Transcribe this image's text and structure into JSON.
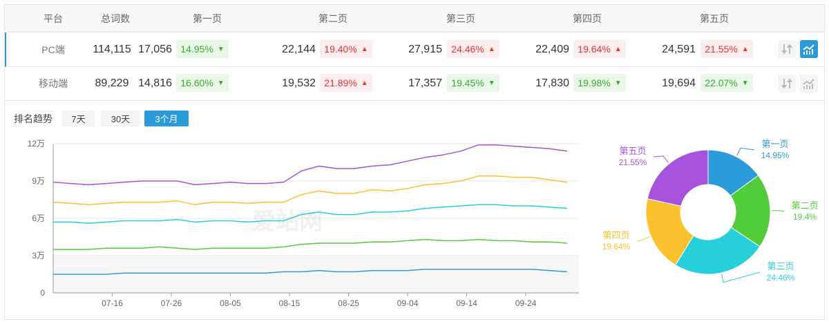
{
  "table": {
    "headers": [
      "平台",
      "总词数",
      "第一页",
      "第二页",
      "第三页",
      "第四页",
      "第五页"
    ],
    "rows": [
      {
        "platform": "PC端",
        "total": "114,115",
        "pages": [
          {
            "count": "17,056",
            "pct": "14.95%",
            "trend": "down"
          },
          {
            "count": "22,144",
            "pct": "19.40%",
            "trend": "up"
          },
          {
            "count": "27,915",
            "pct": "24.46%",
            "trend": "up"
          },
          {
            "count": "22,409",
            "pct": "19.64%",
            "trend": "up"
          },
          {
            "count": "24,591",
            "pct": "21.55%",
            "trend": "up"
          }
        ],
        "chart_active": true
      },
      {
        "platform": "移动端",
        "total": "89,229",
        "pages": [
          {
            "count": "14,816",
            "pct": "16.60%",
            "trend": "down"
          },
          {
            "count": "19,532",
            "pct": "21.89%",
            "trend": "up"
          },
          {
            "count": "17,357",
            "pct": "19.45%",
            "trend": "down"
          },
          {
            "count": "17,830",
            "pct": "19.98%",
            "trend": "down"
          },
          {
            "count": "19,694",
            "pct": "22.07%",
            "trend": "down"
          }
        ],
        "chart_active": false
      }
    ],
    "icons": [
      "sort-icon",
      "trend-chart-icon"
    ]
  },
  "trend": {
    "title": "排名趋势",
    "ranges": [
      "7天",
      "30天",
      "3个月"
    ],
    "selected": "3个月",
    "watermark": "爱站网"
  },
  "colors": {
    "accent": "#2a9ad9",
    "up": "#e8313a",
    "down": "#3ba63a"
  },
  "chart_data": [
    {
      "type": "line",
      "title": "",
      "ylim": [
        0,
        120000
      ],
      "yticks": [
        "0",
        "3万",
        "6万",
        "9万",
        "12万"
      ],
      "xticks": [
        "07-16",
        "07-26",
        "08-05",
        "08-15",
        "08-25",
        "09-04",
        "09-14",
        "09-24"
      ],
      "xrange": [
        "07-06",
        "10-03"
      ],
      "x": [
        "07-06",
        "07-09",
        "07-12",
        "07-15",
        "07-18",
        "07-21",
        "07-24",
        "07-27",
        "07-30",
        "08-02",
        "08-05",
        "08-08",
        "08-11",
        "08-14",
        "08-17",
        "08-20",
        "08-23",
        "08-26",
        "08-29",
        "09-01",
        "09-04",
        "09-07",
        "09-10",
        "09-13",
        "09-16",
        "09-19",
        "09-22",
        "09-25",
        "09-28",
        "10-01"
      ],
      "series": [
        {
          "color": "#2a9ad9",
          "values": [
            15000,
            15000,
            15000,
            15000,
            16000,
            16000,
            16000,
            16000,
            16000,
            16000,
            16000,
            16000,
            16000,
            17000,
            17000,
            18000,
            17000,
            17000,
            18000,
            18000,
            18000,
            19000,
            19000,
            19000,
            19000,
            19000,
            19000,
            19000,
            18000,
            17000
          ]
        },
        {
          "color": "#52cc3b",
          "values": [
            35000,
            35000,
            35000,
            36000,
            36000,
            36000,
            37000,
            36000,
            35000,
            36000,
            36000,
            36000,
            36000,
            37000,
            39000,
            40000,
            40000,
            40000,
            41000,
            41000,
            42000,
            43000,
            42000,
            42000,
            43000,
            42000,
            42000,
            41000,
            41000,
            40000
          ]
        },
        {
          "color": "#27cfdb",
          "values": [
            57000,
            57000,
            56000,
            57000,
            58000,
            58000,
            58000,
            59000,
            57000,
            58000,
            58000,
            57000,
            58000,
            58000,
            63000,
            65000,
            63000,
            63000,
            65000,
            65000,
            66000,
            68000,
            69000,
            70000,
            71000,
            71000,
            70000,
            70000,
            69000,
            68000
          ]
        },
        {
          "color": "#fbc12e",
          "values": [
            73000,
            72000,
            71000,
            72000,
            73000,
            73000,
            73000,
            74000,
            71000,
            73000,
            73000,
            72000,
            73000,
            73000,
            79000,
            82000,
            80000,
            80000,
            83000,
            82000,
            84000,
            87000,
            88000,
            90000,
            94000,
            94000,
            93000,
            93000,
            91000,
            89000
          ]
        },
        {
          "color": "#a652dc",
          "values": [
            89000,
            88000,
            87000,
            88000,
            89000,
            90000,
            90000,
            90000,
            87000,
            88000,
            89000,
            88000,
            88000,
            89000,
            98000,
            102000,
            100000,
            100000,
            102000,
            103000,
            106000,
            109000,
            111000,
            114000,
            119000,
            119000,
            118000,
            117000,
            116000,
            114000
          ]
        }
      ]
    },
    {
      "type": "pie",
      "donut": true,
      "slices": [
        {
          "name": "第一页",
          "label": "14.95%",
          "value": 14.95,
          "color": "#2a9ad9"
        },
        {
          "name": "第二页",
          "label": "19.4%",
          "value": 19.4,
          "color": "#52cc3b"
        },
        {
          "name": "第三页",
          "label": "24.46%",
          "value": 24.46,
          "color": "#27cfdb"
        },
        {
          "name": "第四页",
          "label": "19.64%",
          "value": 19.64,
          "color": "#fbc12e"
        },
        {
          "name": "第五页",
          "label": "21.55%",
          "value": 21.55,
          "color": "#a652dc"
        }
      ]
    }
  ]
}
